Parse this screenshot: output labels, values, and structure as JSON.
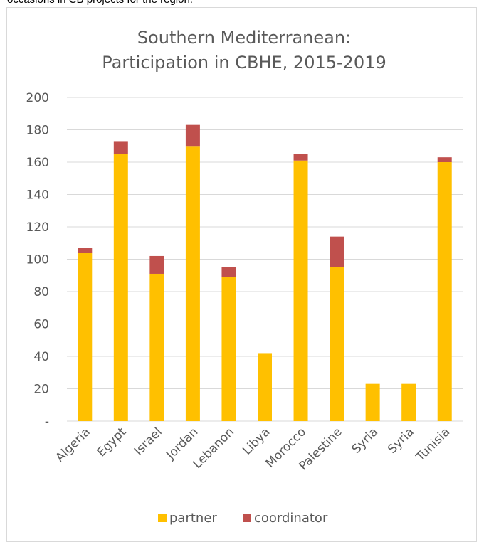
{
  "caption": {
    "prefix": "occasions in ",
    "link": "CB",
    "suffix": " projects for the region."
  },
  "chart_data": {
    "type": "bar",
    "stacked": true,
    "title": [
      "Southern Mediterranean:",
      "Participation in CBHE, 2015-2019"
    ],
    "categories": [
      "Algeria",
      "Egypt",
      "Israel",
      "Jordan",
      "Lebanon",
      "Libya",
      "Morocco",
      "Palestine",
      "Syria",
      "Syria",
      "Tunisia"
    ],
    "series": [
      {
        "name": "partner",
        "color": "#FFC000",
        "values": [
          104,
          165,
          91,
          170,
          89,
          42,
          161,
          95,
          23,
          23,
          160
        ]
      },
      {
        "name": "coordinator",
        "color": "#C0504D",
        "values": [
          3,
          8,
          11,
          13,
          6,
          0,
          4,
          19,
          0,
          0,
          3
        ]
      }
    ],
    "ylim": [
      0,
      200
    ],
    "yticks": [
      0,
      20,
      40,
      60,
      80,
      100,
      120,
      140,
      160,
      180,
      200
    ],
    "ytick_labels": [
      "-",
      "20",
      "40",
      "60",
      "80",
      "100",
      "120",
      "140",
      "160",
      "180",
      "200"
    ],
    "grid": true,
    "legend_position": "bottom"
  }
}
